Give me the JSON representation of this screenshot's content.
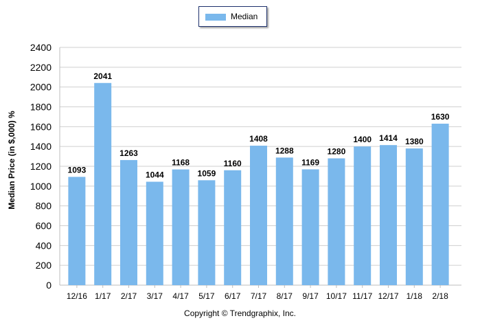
{
  "chart_data": {
    "type": "bar",
    "categories": [
      "12/16",
      "1/17",
      "2/17",
      "3/17",
      "4/17",
      "5/17",
      "6/17",
      "7/17",
      "8/17",
      "9/17",
      "10/17",
      "11/17",
      "12/17",
      "1/18",
      "2/18"
    ],
    "series": [
      {
        "name": "Median",
        "values": [
          1093,
          2041,
          1263,
          1044,
          1168,
          1059,
          1160,
          1408,
          1288,
          1169,
          1280,
          1400,
          1414,
          1380,
          1630
        ]
      }
    ],
    "ylabel": "Median Price (in $,000) %",
    "xlabel": "",
    "ylim": [
      0,
      2400
    ],
    "yticks": [
      0,
      200,
      400,
      600,
      800,
      1000,
      1200,
      1400,
      1600,
      1800,
      2000,
      2200,
      2400
    ],
    "grid": true,
    "legend": "top-center",
    "bar_color": "#7ab8ec",
    "data_labels": true
  },
  "legend": {
    "label": "Median"
  },
  "footer": {
    "copyright": "Copyright © Trendgraphix, Inc."
  }
}
